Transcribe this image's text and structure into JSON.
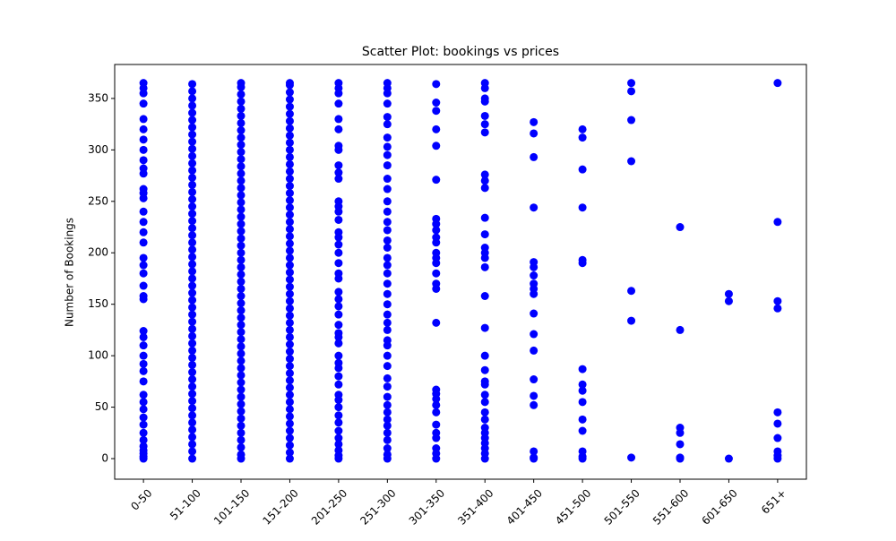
{
  "chart_data": {
    "type": "scatter",
    "title": "Scatter Plot: bookings vs prices",
    "ylabel": "Number of Bookings",
    "color": "#0000ff",
    "categories": [
      "0-50",
      "51-100",
      "101-150",
      "151-200",
      "201-250",
      "251-300",
      "301-350",
      "351-400",
      "401-450",
      "451-500",
      "501-550",
      "551-600",
      "601-650",
      "651+"
    ],
    "values": [
      [
        0,
        2,
        5,
        8,
        12,
        18,
        25,
        33,
        40,
        48,
        55,
        62,
        75,
        85,
        92,
        100,
        110,
        118,
        124,
        155,
        158,
        168,
        180,
        188,
        195,
        210,
        220,
        230,
        240,
        253,
        258,
        262,
        277,
        282,
        290,
        300,
        310,
        320,
        330,
        345,
        355,
        360,
        365
      ],
      [
        0,
        7,
        14,
        21,
        28,
        35,
        42,
        49,
        56,
        63,
        70,
        77,
        84,
        91,
        98,
        105,
        112,
        119,
        126,
        133,
        140,
        147,
        154,
        161,
        168,
        175,
        182,
        189,
        196,
        203,
        210,
        217,
        224,
        231,
        238,
        245,
        252,
        259,
        266,
        273,
        280,
        287,
        294,
        301,
        308,
        315,
        322,
        329,
        336,
        343,
        350,
        357,
        364
      ],
      [
        0,
        4,
        11,
        18,
        25,
        32,
        39,
        46,
        53,
        60,
        67,
        74,
        81,
        88,
        95,
        102,
        109,
        116,
        123,
        130,
        137,
        144,
        151,
        158,
        165,
        172,
        179,
        186,
        193,
        200,
        207,
        214,
        221,
        228,
        235,
        242,
        249,
        256,
        263,
        270,
        277,
        284,
        291,
        298,
        305,
        312,
        319,
        326,
        333,
        340,
        347,
        354,
        361,
        365
      ],
      [
        0,
        6,
        13,
        20,
        27,
        34,
        41,
        48,
        55,
        62,
        69,
        76,
        83,
        90,
        97,
        104,
        111,
        118,
        125,
        132,
        139,
        146,
        153,
        160,
        167,
        174,
        181,
        188,
        195,
        202,
        209,
        216,
        223,
        230,
        237,
        244,
        251,
        258,
        265,
        272,
        279,
        286,
        293,
        300,
        307,
        314,
        321,
        328,
        335,
        342,
        349,
        356,
        363,
        365
      ],
      [
        0,
        3,
        8,
        14,
        20,
        27,
        35,
        42,
        50,
        57,
        62,
        72,
        80,
        88,
        93,
        100,
        112,
        118,
        122,
        130,
        140,
        148,
        155,
        162,
        175,
        180,
        190,
        200,
        208,
        215,
        220,
        232,
        240,
        245,
        250,
        272,
        278,
        285,
        300,
        304,
        320,
        330,
        345,
        355,
        360,
        365
      ],
      [
        0,
        4,
        10,
        18,
        25,
        32,
        38,
        45,
        52,
        60,
        70,
        78,
        90,
        100,
        110,
        115,
        125,
        132,
        140,
        150,
        160,
        170,
        180,
        188,
        195,
        205,
        212,
        222,
        230,
        240,
        250,
        262,
        272,
        285,
        295,
        303,
        312,
        325,
        332,
        345,
        355,
        360,
        365
      ],
      [
        0,
        5,
        10,
        20,
        25,
        33,
        45,
        52,
        58,
        63,
        67,
        132,
        165,
        170,
        180,
        190,
        195,
        200,
        210,
        215,
        222,
        228,
        233,
        271,
        304,
        320,
        338,
        346,
        364
      ],
      [
        0,
        5,
        10,
        15,
        20,
        25,
        30,
        38,
        45,
        55,
        62,
        72,
        75,
        86,
        100,
        127,
        158,
        186,
        195,
        200,
        205,
        218,
        234,
        263,
        270,
        276,
        317,
        325,
        333,
        347,
        350,
        360,
        365
      ],
      [
        0,
        1,
        7,
        52,
        61,
        77,
        105,
        121,
        141,
        160,
        165,
        170,
        178,
        186,
        191,
        244,
        293,
        316,
        327
      ],
      [
        0,
        2,
        7,
        27,
        38,
        55,
        66,
        72,
        87,
        190,
        193,
        244,
        281,
        312,
        320
      ],
      [
        1,
        134,
        163,
        289,
        329,
        357,
        365
      ],
      [
        0,
        1,
        14,
        25,
        30,
        125,
        225
      ],
      [
        0,
        153,
        160
      ],
      [
        0,
        3,
        7,
        20,
        34,
        45,
        146,
        153,
        230,
        365
      ]
    ],
    "ylim": [
      -20,
      383
    ],
    "yticks": [
      0,
      50,
      100,
      150,
      200,
      250,
      300,
      350
    ]
  }
}
